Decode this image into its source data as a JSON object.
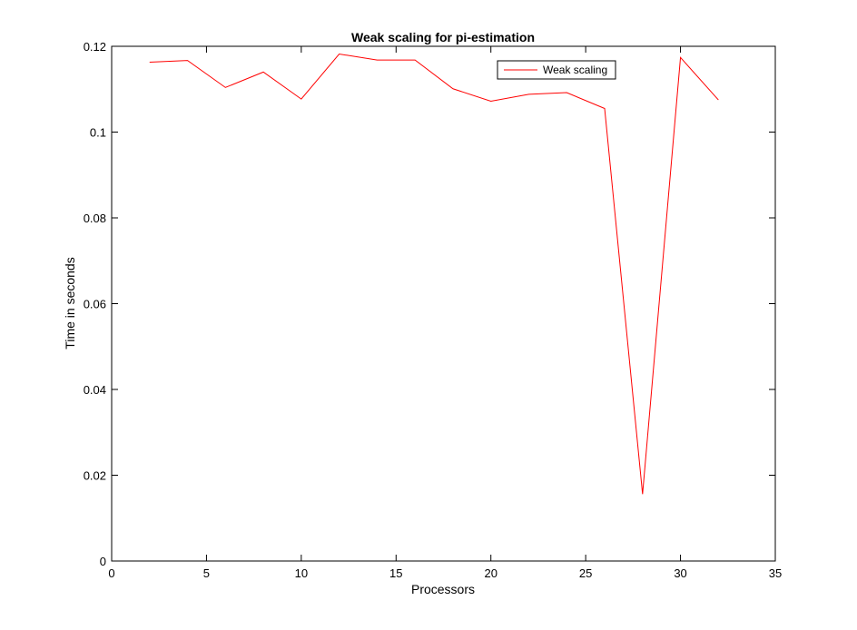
{
  "chart_data": {
    "type": "line",
    "title": "Weak scaling for pi-estimation",
    "xlabel": "Processors",
    "ylabel": "Time in seconds",
    "xlim": [
      0,
      35
    ],
    "ylim": [
      0,
      0.12
    ],
    "xticks": [
      0,
      5,
      10,
      15,
      20,
      25,
      30,
      35
    ],
    "xtick_labels": [
      "0",
      "5",
      "10",
      "15",
      "20",
      "25",
      "30",
      "35"
    ],
    "yticks": [
      0,
      0.02,
      0.04,
      0.06,
      0.08,
      0.1,
      0.12
    ],
    "ytick_labels": [
      "0",
      "0.02",
      "0.04",
      "0.06",
      "0.08",
      "0.1",
      "0.12"
    ],
    "grid": false,
    "legend_position": "top-right",
    "series": [
      {
        "name": "Weak scaling",
        "color": "#ff0000",
        "x": [
          2,
          4,
          6,
          8,
          10,
          12,
          14,
          16,
          18,
          20,
          22,
          24,
          26,
          28,
          30,
          32
        ],
        "y": [
          0.1163,
          0.1167,
          0.1104,
          0.114,
          0.1077,
          0.1182,
          0.1168,
          0.1168,
          0.1101,
          0.1072,
          0.1088,
          0.1092,
          0.1055,
          0.0156,
          0.1174,
          0.1075
        ]
      }
    ]
  }
}
